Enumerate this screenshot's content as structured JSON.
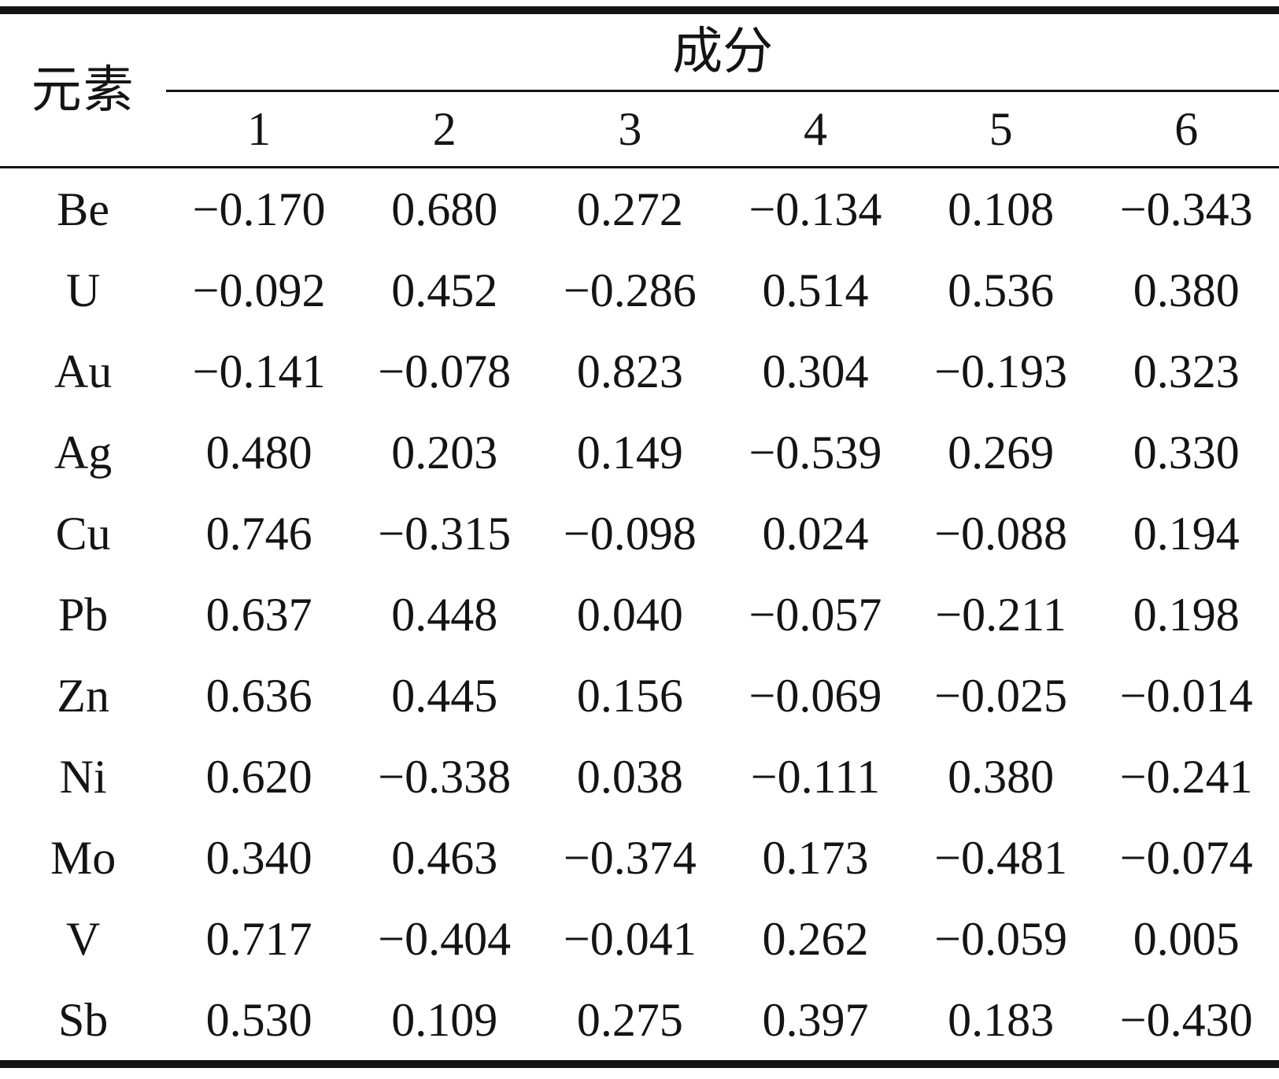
{
  "table": {
    "element_header": "元素",
    "component_header": "成分",
    "component_columns": [
      "1",
      "2",
      "3",
      "4",
      "5",
      "6"
    ],
    "rows": [
      {
        "element": "Be",
        "values": [
          "−0.170",
          "0.680",
          "0.272",
          "−0.134",
          "0.108",
          "−0.343"
        ]
      },
      {
        "element": "U",
        "values": [
          "−0.092",
          "0.452",
          "−0.286",
          "0.514",
          "0.536",
          "0.380"
        ]
      },
      {
        "element": "Au",
        "values": [
          "−0.141",
          "−0.078",
          "0.823",
          "0.304",
          "−0.193",
          "0.323"
        ]
      },
      {
        "element": "Ag",
        "values": [
          "0.480",
          "0.203",
          "0.149",
          "−0.539",
          "0.269",
          "0.330"
        ]
      },
      {
        "element": "Cu",
        "values": [
          "0.746",
          "−0.315",
          "−0.098",
          "0.024",
          "−0.088",
          "0.194"
        ]
      },
      {
        "element": "Pb",
        "values": [
          "0.637",
          "0.448",
          "0.040",
          "−0.057",
          "−0.211",
          "0.198"
        ]
      },
      {
        "element": "Zn",
        "values": [
          "0.636",
          "0.445",
          "0.156",
          "−0.069",
          "−0.025",
          "−0.014"
        ]
      },
      {
        "element": "Ni",
        "values": [
          "0.620",
          "−0.338",
          "0.038",
          "−0.111",
          "0.380",
          "−0.241"
        ]
      },
      {
        "element": "Mo",
        "values": [
          "0.340",
          "0.463",
          "−0.374",
          "0.173",
          "−0.481",
          "−0.074"
        ]
      },
      {
        "element": "V",
        "values": [
          "0.717",
          "−0.404",
          "−0.041",
          "0.262",
          "−0.059",
          "0.005"
        ]
      },
      {
        "element": "Sb",
        "values": [
          "0.530",
          "0.109",
          "0.275",
          "0.397",
          "0.183",
          "−0.430"
        ]
      }
    ]
  },
  "colors": {
    "text": "#141414",
    "rule": "#141414",
    "background": "#ffffff"
  }
}
